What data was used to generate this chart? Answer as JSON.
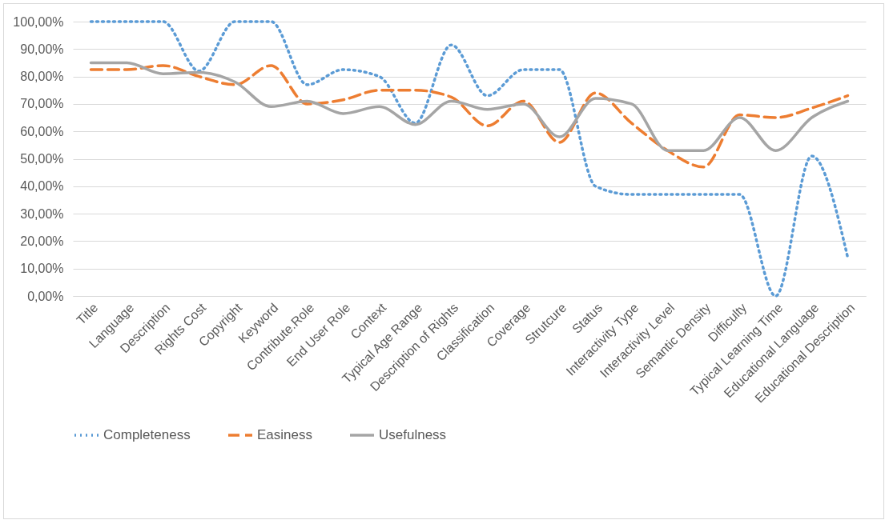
{
  "chart_data": {
    "type": "line",
    "categories": [
      "Title",
      "Language",
      "Description",
      "Rights Cost",
      "Copyright",
      "Keyword",
      "Contribute.Role",
      "End User Role",
      "Context",
      "Typical Age Range",
      "Description of Rights",
      "Classification",
      "Coverage",
      "Strutcure",
      "Status",
      "Interactivity Type",
      "Interactivity Level",
      "Semantic Density",
      "Difficulty",
      "Typical Learning Time",
      "Educational Language",
      "Educational Description"
    ],
    "series": [
      {
        "name": "Completeness",
        "color": "#5b9bd5",
        "line_style": "dotted",
        "values": [
          100,
          100,
          100,
          82,
          100,
          100,
          77,
          82.5,
          80,
          63,
          91.5,
          73,
          82.5,
          82.5,
          40,
          37,
          37,
          37,
          37,
          0,
          51,
          14
        ]
      },
      {
        "name": "Easiness",
        "color": "#ed7d31",
        "line_style": "dashed",
        "values": [
          82.5,
          82.5,
          84,
          80,
          77,
          84,
          70,
          71.5,
          75,
          75,
          72.5,
          62,
          71,
          56,
          74,
          63,
          53,
          47,
          66,
          65,
          68.5,
          73
        ]
      },
      {
        "name": "Usefulness",
        "color": "#a5a5a5",
        "line_style": "solid",
        "values": [
          85,
          85,
          81,
          81.5,
          78,
          69,
          71,
          66.5,
          69,
          62.5,
          71,
          68,
          70,
          58,
          72,
          70,
          53,
          53,
          65,
          53,
          65,
          71
        ]
      }
    ],
    "ylim": [
      0,
      100
    ],
    "yticks": [
      {
        "value": 0,
        "label": "0,00%"
      },
      {
        "value": 10,
        "label": "10,00%"
      },
      {
        "value": 20,
        "label": "20,00%"
      },
      {
        "value": 30,
        "label": "30,00%"
      },
      {
        "value": 40,
        "label": "40,00%"
      },
      {
        "value": 50,
        "label": "50,00%"
      },
      {
        "value": 60,
        "label": "60,00%"
      },
      {
        "value": 70,
        "label": "70,00%"
      },
      {
        "value": 80,
        "label": "80,00%"
      },
      {
        "value": 90,
        "label": "90,00%"
      },
      {
        "value": 100,
        "label": "100,00%"
      }
    ],
    "grid": "y",
    "legend": "bottom"
  }
}
